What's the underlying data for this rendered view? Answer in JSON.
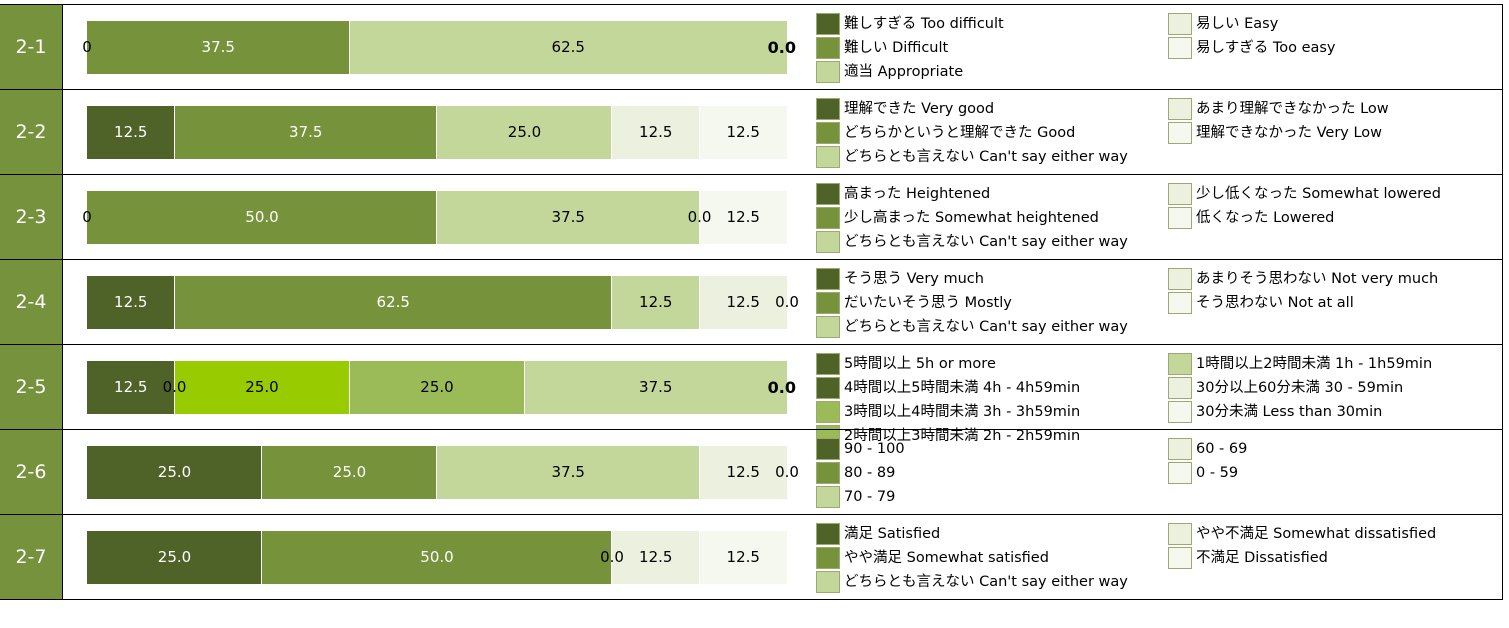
{
  "palettes": {
    "p5": [
      "#4f6228",
      "#76933c",
      "#c4d79b",
      "#ebf1de",
      "#f2f6e9"
    ],
    "p8": [
      "#4f6228",
      "#76933c",
      "#9bbb59",
      "#9bbb59",
      "#c4d79b",
      "#d8e4bc",
      "#ebf1de",
      "#f5f8ee"
    ],
    "p8b": [
      "#4f6228",
      "#4f6228",
      "#9acd00",
      "#9bbb59",
      "#c4d79b",
      "#d8e4bc",
      "#ebf1de",
      "#f5f8ee"
    ]
  },
  "chart_data": [
    {
      "type": "bar",
      "id": "2-1",
      "label": "2-1",
      "stacked": true,
      "values": [
        0.0,
        37.5,
        62.5,
        0.0,
        0.0
      ],
      "labels": [
        "0",
        "37.5",
        "62.5",
        "",
        ""
      ],
      "end_label": "0.0",
      "colors": [
        "#4f6228",
        "#76933c",
        "#c4d79b",
        "#ebf1de",
        "#f5f8ee"
      ],
      "legend_left": [
        "難しすぎる Too difficult",
        "難しい Difficult",
        "適当 Appropriate"
      ],
      "legend_right": [
        "易しい Easy",
        "易しすぎる Too easy"
      ],
      "legend_left_colors": [
        "#4f6228",
        "#76933c",
        "#c4d79b"
      ],
      "legend_right_colors": [
        "#ebf1de",
        "#f5f8ee"
      ]
    },
    {
      "type": "bar",
      "id": "2-2",
      "label": "2-2",
      "stacked": true,
      "values": [
        12.5,
        37.5,
        25.0,
        12.5,
        12.5
      ],
      "labels": [
        "12.5",
        "37.5",
        "25.0",
        "12.5",
        "12.5"
      ],
      "end_label": "",
      "colors": [
        "#4f6228",
        "#76933c",
        "#c4d79b",
        "#ebf1de",
        "#f5f8ee"
      ],
      "legend_left": [
        "理解できた Very good",
        "どちらかというと理解できた Good",
        "どちらとも言えない Can't say either way"
      ],
      "legend_right": [
        "あまり理解できなかった Low",
        "理解できなかった Very Low"
      ],
      "legend_left_colors": [
        "#4f6228",
        "#76933c",
        "#c4d79b"
      ],
      "legend_right_colors": [
        "#ebf1de",
        "#f5f8ee"
      ]
    },
    {
      "type": "bar",
      "id": "2-3",
      "label": "2-3",
      "stacked": true,
      "values": [
        0.0,
        50.0,
        37.5,
        0.0,
        12.5
      ],
      "labels": [
        "0",
        "50.0",
        "37.5",
        "0.0",
        "12.5"
      ],
      "end_label": "",
      "colors": [
        "#4f6228",
        "#76933c",
        "#c4d79b",
        "#ebf1de",
        "#f5f8ee"
      ],
      "legend_left": [
        "高まった Heightened",
        "少し高まった Somewhat heightened",
        "どちらとも言えない Can't say either way"
      ],
      "legend_right": [
        "少し低くなった Somewhat lowered",
        "低くなった Lowered"
      ],
      "legend_left_colors": [
        "#4f6228",
        "#76933c",
        "#c4d79b"
      ],
      "legend_right_colors": [
        "#ebf1de",
        "#f5f8ee"
      ]
    },
    {
      "type": "bar",
      "id": "2-4",
      "label": "2-4",
      "stacked": true,
      "values": [
        12.5,
        62.5,
        12.5,
        12.5,
        0.0
      ],
      "labels": [
        "12.5",
        "62.5",
        "12.5",
        "12.5",
        "0.0"
      ],
      "end_label": "",
      "colors": [
        "#4f6228",
        "#76933c",
        "#c4d79b",
        "#ebf1de",
        "#f5f8ee"
      ],
      "legend_left": [
        "そう思う Very much",
        "だいたいそう思う Mostly",
        "どちらとも言えない Can't say either way"
      ],
      "legend_right": [
        "あまりそう思わない Not very much",
        "そう思わない Not at all"
      ],
      "legend_left_colors": [
        "#4f6228",
        "#76933c",
        "#c4d79b"
      ],
      "legend_right_colors": [
        "#ebf1de",
        "#f5f8ee"
      ]
    },
    {
      "type": "bar",
      "id": "2-5",
      "label": "2-5",
      "stacked": true,
      "values": [
        12.5,
        0.0,
        25.0,
        25.0,
        37.5,
        0.0,
        0.0,
        0.0
      ],
      "labels": [
        "12.5",
        "0.0",
        "25.0",
        "25.0",
        "37.5",
        "",
        "",
        ""
      ],
      "end_label": "0.0",
      "colors": [
        "#4f6228",
        "#4f6228",
        "#99cc00",
        "#9bbb59",
        "#c4d79b",
        "#d8e4bc",
        "#ebf1de",
        "#f5f8ee"
      ],
      "legend_left": [
        "5時間以上 5h or more",
        "4時間以上5時間未満 4h - 4h59min",
        "3時間以上4時間未満 3h - 3h59min",
        "2時間以上3時間未満 2h - 2h59min"
      ],
      "legend_right": [
        "1時間以上2時間未満 1h - 1h59min",
        "30分以上60分未満 30 - 59min",
        "30分未満 Less than 30min"
      ],
      "legend_left_colors": [
        "#4f6228",
        "#4f6228",
        "#9bbb59",
        "#9bbb59"
      ],
      "legend_right_colors": [
        "#c4d79b",
        "#ebf1de",
        "#f5f8ee"
      ]
    },
    {
      "type": "bar",
      "id": "2-6",
      "label": "2-6",
      "stacked": true,
      "values": [
        25.0,
        25.0,
        37.5,
        12.5,
        0.0
      ],
      "labels": [
        "25.0",
        "25.0",
        "37.5",
        "12.5",
        "0.0"
      ],
      "end_label": "",
      "colors": [
        "#4f6228",
        "#76933c",
        "#c4d79b",
        "#ebf1de",
        "#f5f8ee"
      ],
      "legend_left": [
        "90 - 100",
        "80 - 89",
        "70 - 79"
      ],
      "legend_right": [
        "60 - 69",
        "0 - 59"
      ],
      "legend_left_colors": [
        "#4f6228",
        "#76933c",
        "#c4d79b"
      ],
      "legend_right_colors": [
        "#ebf1de",
        "#f5f8ee"
      ]
    },
    {
      "type": "bar",
      "id": "2-7",
      "label": "2-7",
      "stacked": true,
      "values": [
        25.0,
        50.0,
        0.0,
        12.5,
        12.5
      ],
      "labels": [
        "25.0",
        "50.0",
        "0.0",
        "12.5",
        "12.5"
      ],
      "end_label": "",
      "colors": [
        "#4f6228",
        "#76933c",
        "#c4d79b",
        "#ebf1de",
        "#f5f8ee"
      ],
      "legend_left": [
        "満足 Satisfied",
        "やや満足 Somewhat satisfied",
        "どちらとも言えない Can't say either way"
      ],
      "legend_right": [
        "やや不満足 Somewhat dissatisfied",
        "不満足 Dissatisfied"
      ],
      "legend_left_colors": [
        "#4f6228",
        "#76933c",
        "#c4d79b"
      ],
      "legend_right_colors": [
        "#ebf1de",
        "#f5f8ee"
      ]
    }
  ]
}
